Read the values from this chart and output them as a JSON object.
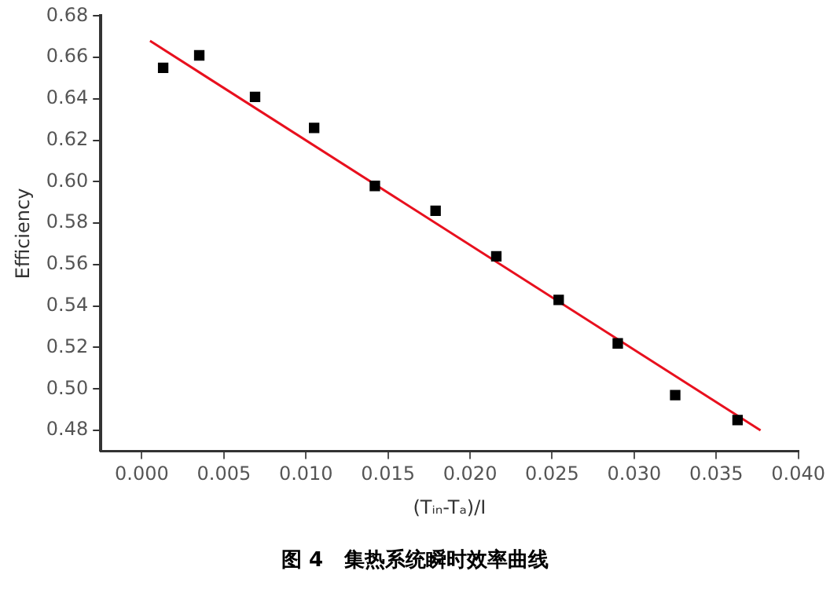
{
  "chart_data": {
    "type": "scatter",
    "title": "图 4   集热系统瞬时效率曲线",
    "xlabel": "(Tᵢₙ-Tₐ)/I",
    "ylabel": "Efficiency",
    "xlim": [
      -0.0025,
      0.04
    ],
    "xticks": [
      {
        "value": 0,
        "label": "0.000"
      },
      0.005,
      {
        "value": 0.01,
        "label": "0.010"
      },
      0.015,
      {
        "value": 0.02,
        "label": "0.020"
      },
      0.025,
      {
        "value": 0.03,
        "label": "0.030"
      },
      0.035,
      {
        "value": 0.04,
        "label": "0.040"
      }
    ],
    "ylim": [
      0.47,
      0.68
    ],
    "yticks": [
      0.48,
      {
        "value": 0.5,
        "label": "0.50"
      },
      0.52,
      0.54,
      0.56,
      0.58,
      {
        "value": 0.6,
        "label": "0.60"
      },
      0.62,
      0.64,
      0.66,
      0.68
    ],
    "grid": false,
    "legend": false,
    "marker": "square",
    "series": [
      {
        "color": "#000000",
        "x": [
          0.0013,
          0.0035,
          0.0069,
          0.0105,
          0.0142,
          0.0179,
          0.0216,
          0.0254,
          0.029,
          0.0325,
          0.0363
        ],
        "values": [
          0.655,
          0.661,
          0.641,
          0.626,
          0.598,
          0.586,
          0.564,
          0.543,
          0.522,
          0.497,
          0.485
        ]
      },
      {
        "type": "line",
        "marker": "none",
        "color": "#e8101e",
        "x": [
          0.0005,
          0.0377
        ],
        "values": [
          0.668,
          0.48
        ]
      }
    ]
  }
}
